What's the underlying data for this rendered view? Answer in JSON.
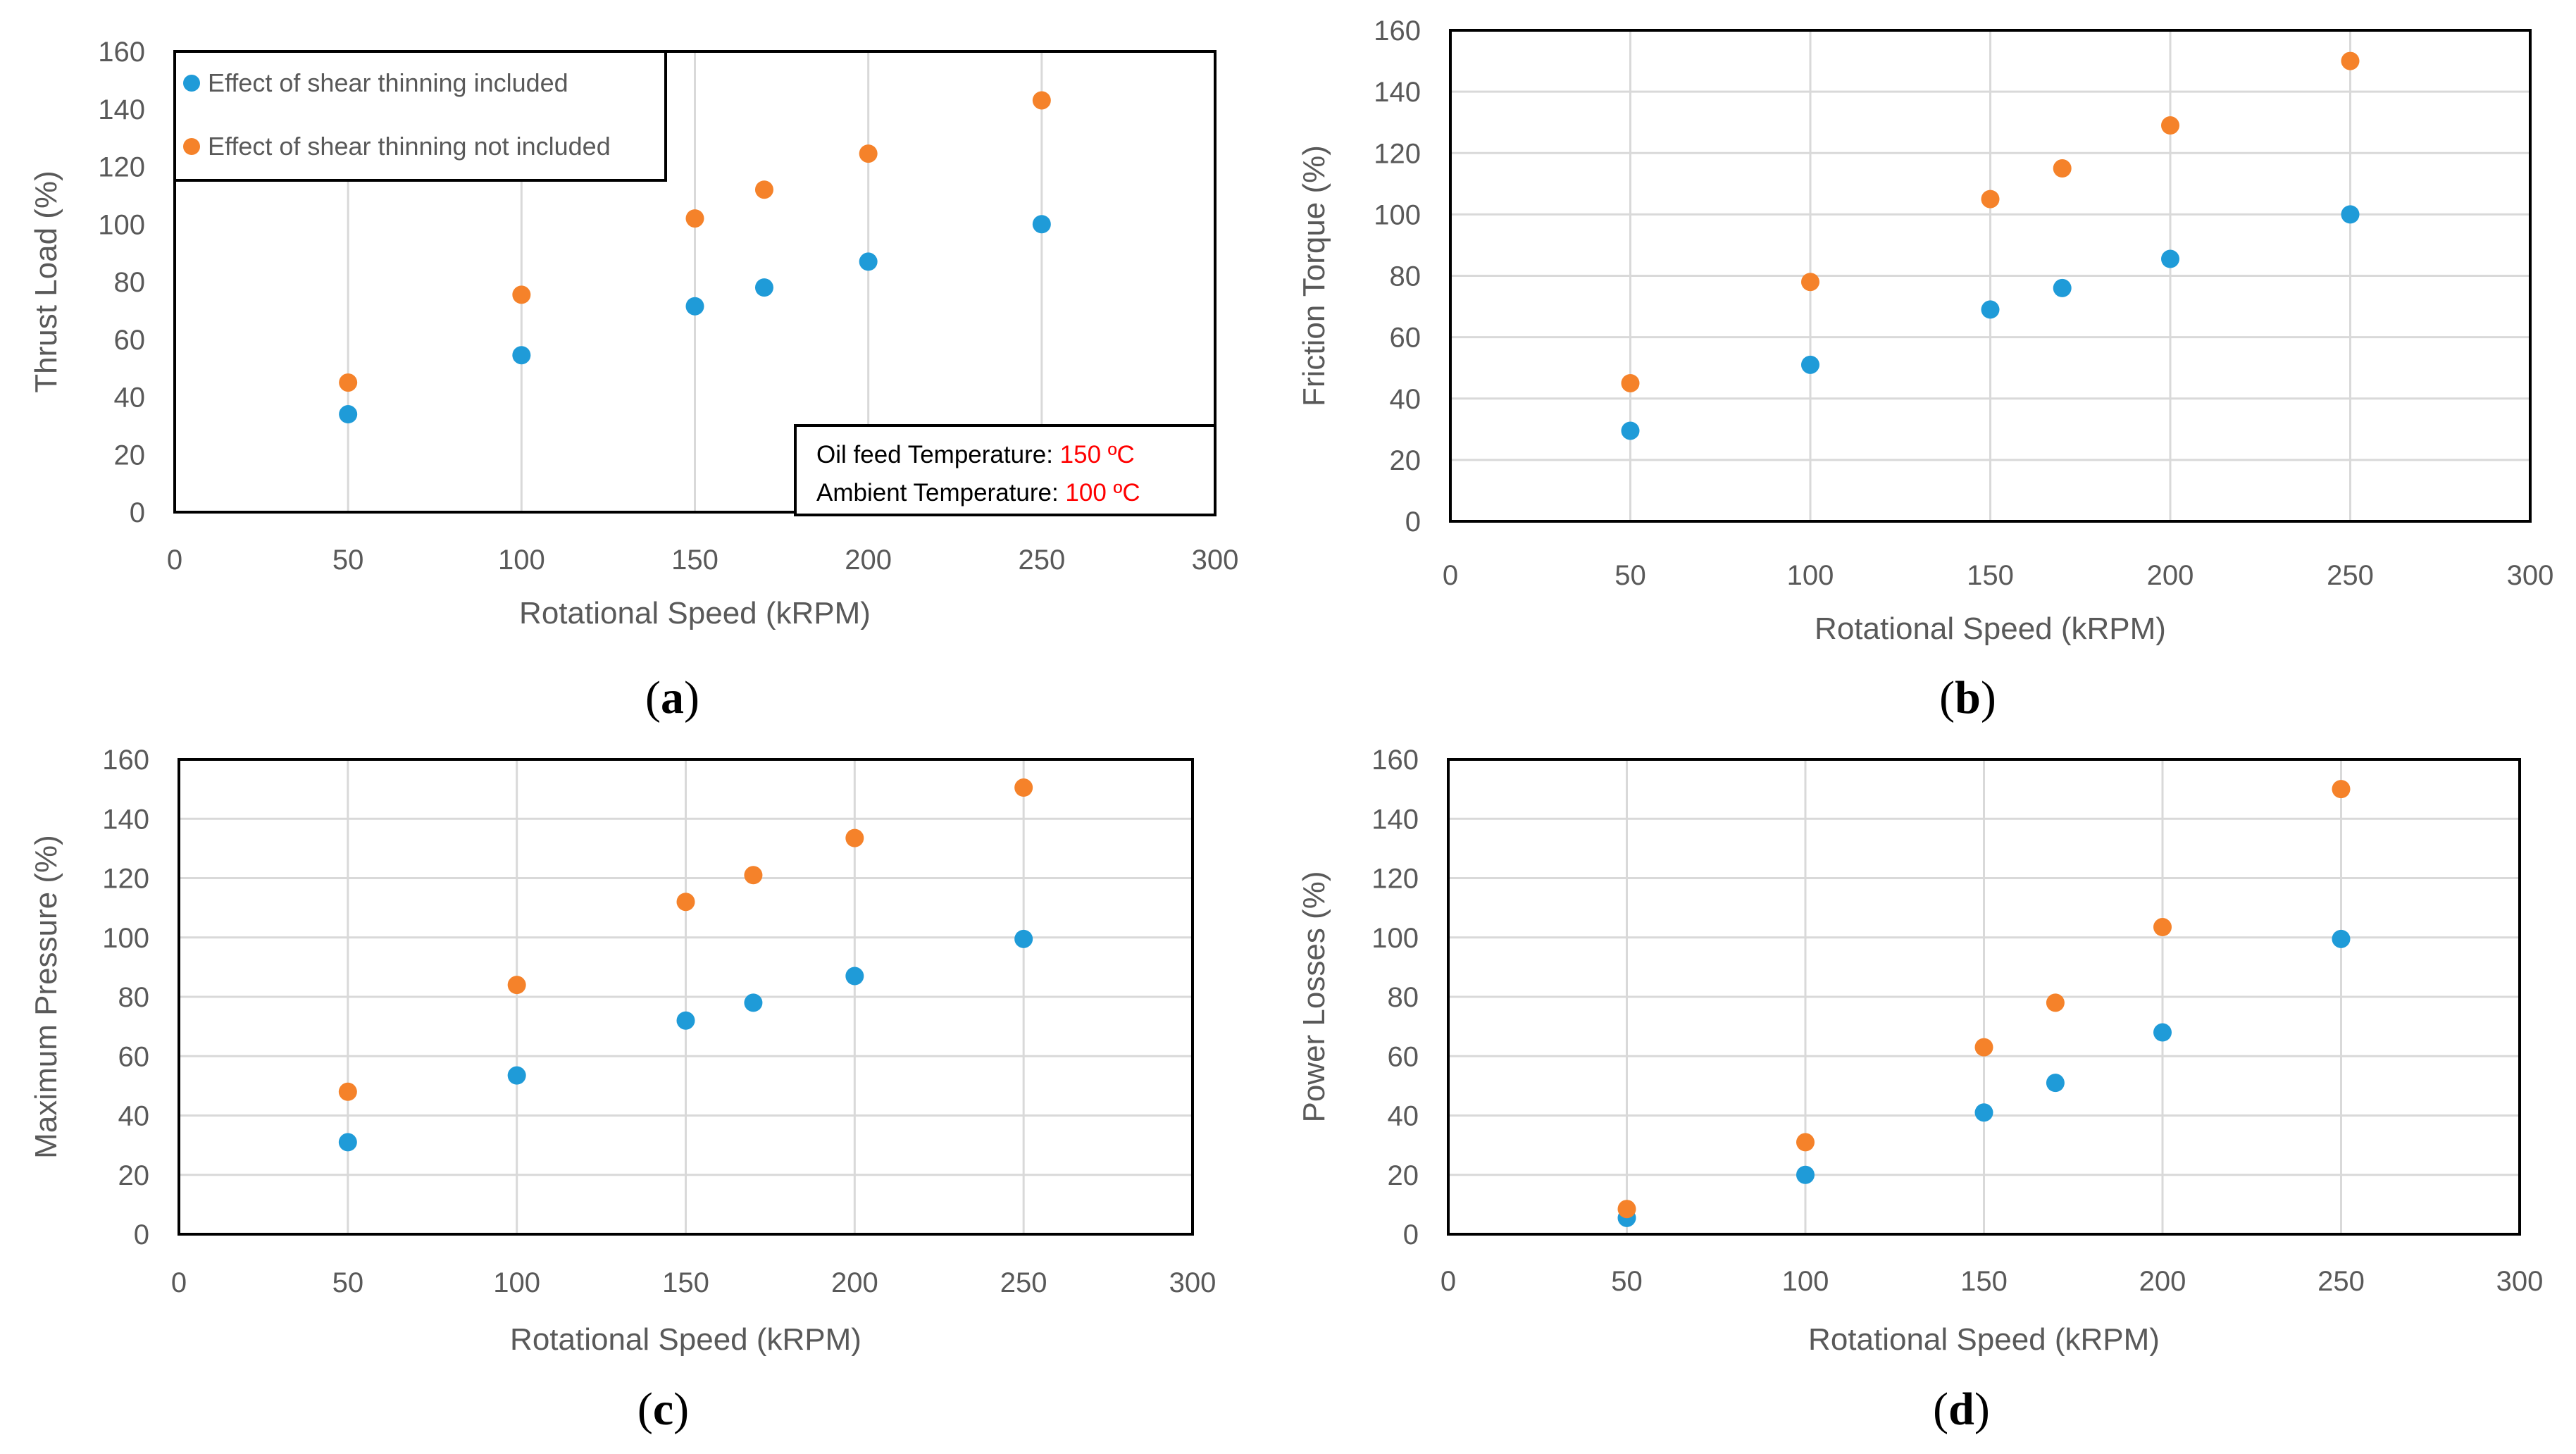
{
  "colors": {
    "included": "#1f9bd8",
    "not_included": "#f5822a",
    "grid": "#d9d9d9",
    "axis_text": "#595959",
    "highlight": "#ff0000"
  },
  "chart_data": [
    {
      "id": "a",
      "type": "scatter",
      "caption": {
        "open": "(",
        "letter": "a",
        "close": ")"
      },
      "xlabel": "Rotational Speed (kRPM)",
      "ylabel": "Thrust Load (%)",
      "xlim": [
        0,
        300
      ],
      "ylim": [
        0,
        160
      ],
      "xticks": [
        "0",
        "50",
        "100",
        "150",
        "200",
        "250",
        "300"
      ],
      "yticks": [
        "0",
        "20",
        "40",
        "60",
        "80",
        "100",
        "120",
        "140",
        "160"
      ],
      "grid": "vertical",
      "legend": {
        "position": "top-left",
        "entries": [
          "Effect of shear thinning included",
          "Effect of shear thinning not included"
        ]
      },
      "annotation": {
        "position": "bottom-right",
        "lines": [
          {
            "label": "Oil feed Temperature: ",
            "value": "150 ºC"
          },
          {
            "label": "Ambient Temperature: ",
            "value": "100 ºC"
          }
        ]
      },
      "x": [
        50,
        100,
        150,
        170,
        200,
        250
      ],
      "series": [
        {
          "name": "Effect of shear thinning included",
          "values": [
            34,
            54.5,
            71.5,
            78,
            87,
            100
          ]
        },
        {
          "name": "Effect of shear thinning not included",
          "values": [
            45,
            75.5,
            102,
            112,
            124.5,
            143
          ]
        }
      ]
    },
    {
      "id": "b",
      "type": "scatter",
      "caption": {
        "open": "(",
        "letter": "b",
        "close": ")"
      },
      "xlabel": "Rotational Speed (kRPM)",
      "ylabel": "Friction Torque (%)",
      "xlim": [
        0,
        300
      ],
      "ylim": [
        0,
        160
      ],
      "xticks": [
        "0",
        "50",
        "100",
        "150",
        "200",
        "250",
        "300"
      ],
      "yticks": [
        "0",
        "20",
        "40",
        "60",
        "80",
        "100",
        "120",
        "140",
        "160"
      ],
      "grid": "both",
      "x": [
        50,
        100,
        150,
        170,
        200,
        250
      ],
      "series": [
        {
          "name": "Effect of shear thinning included",
          "values": [
            29.5,
            51,
            69,
            76,
            85.5,
            100
          ]
        },
        {
          "name": "Effect of shear thinning not included",
          "values": [
            45,
            78,
            105,
            115,
            129,
            150
          ]
        }
      ]
    },
    {
      "id": "c",
      "type": "scatter",
      "caption": {
        "open": "(",
        "letter": "c",
        "close": ")"
      },
      "xlabel": "Rotational Speed (kRPM)",
      "ylabel": "Maximum Pressure (%)",
      "xlim": [
        0,
        300
      ],
      "ylim": [
        0,
        160
      ],
      "xticks": [
        "0",
        "50",
        "100",
        "150",
        "200",
        "250",
        "300"
      ],
      "yticks": [
        "0",
        "20",
        "40",
        "60",
        "80",
        "100",
        "120",
        "140",
        "160"
      ],
      "grid": "both",
      "x": [
        50,
        100,
        150,
        170,
        200,
        250
      ],
      "series": [
        {
          "name": "Effect of shear thinning included",
          "values": [
            31,
            53.5,
            72,
            78,
            87,
            99.5
          ]
        },
        {
          "name": "Effect of shear thinning not included",
          "values": [
            48,
            84,
            112,
            121,
            133.5,
            150.5
          ]
        }
      ]
    },
    {
      "id": "d",
      "type": "scatter",
      "caption": {
        "open": "(",
        "letter": "d",
        "close": ")"
      },
      "xlabel": "Rotational Speed (kRPM)",
      "ylabel": "Power Losses (%)",
      "xlim": [
        0,
        300
      ],
      "ylim": [
        0,
        160
      ],
      "xticks": [
        "0",
        "50",
        "100",
        "150",
        "200",
        "250",
        "300"
      ],
      "yticks": [
        "0",
        "20",
        "40",
        "60",
        "80",
        "100",
        "120",
        "140",
        "160"
      ],
      "grid": "both",
      "x": [
        50,
        100,
        150,
        170,
        200,
        250
      ],
      "series": [
        {
          "name": "Effect of shear thinning included",
          "values": [
            5.5,
            20,
            41,
            51,
            68,
            99.5
          ]
        },
        {
          "name": "Effect of shear thinning not included",
          "values": [
            8.5,
            31,
            63,
            78,
            103.5,
            150
          ]
        }
      ]
    }
  ]
}
